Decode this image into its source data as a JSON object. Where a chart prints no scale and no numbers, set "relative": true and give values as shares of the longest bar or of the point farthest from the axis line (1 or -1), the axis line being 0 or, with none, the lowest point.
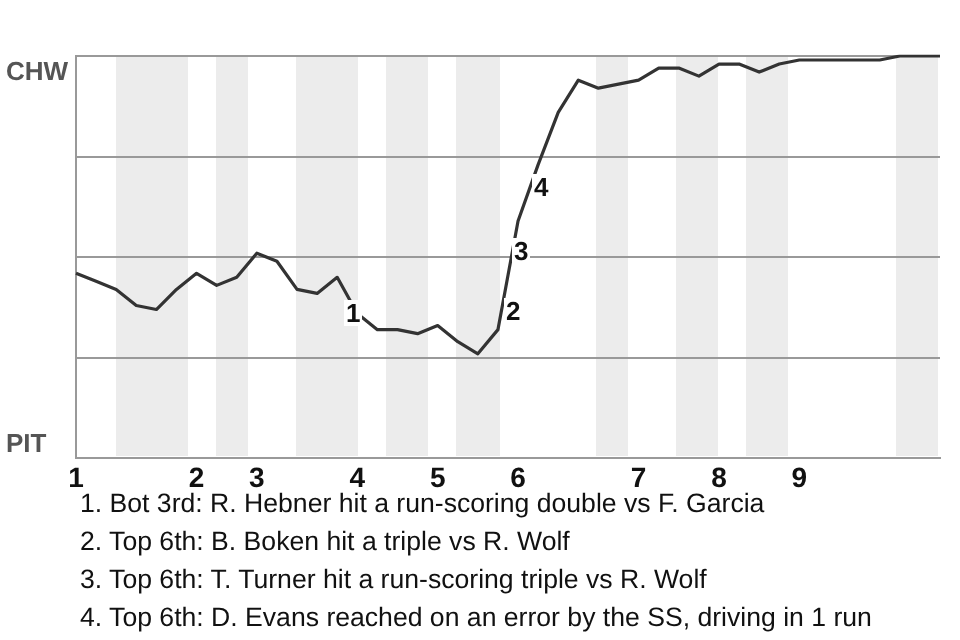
{
  "chart_data": {
    "type": "line",
    "relative": true,
    "categories": [
      "1",
      null,
      null,
      null,
      null,
      null,
      "2",
      null,
      null,
      "3",
      null,
      null,
      null,
      null,
      "4",
      null,
      null,
      null,
      "5",
      null,
      null,
      null,
      "6",
      null,
      null,
      null,
      null,
      null,
      "7",
      null,
      null,
      null,
      "8",
      null,
      null,
      null,
      "9",
      null,
      null,
      null,
      null,
      null,
      null,
      null
    ],
    "series": [
      {
        "color": "#333333",
        "values": [
          0.46,
          0.44,
          0.42,
          0.38,
          0.37,
          0.42,
          0.46,
          0.43,
          0.45,
          0.51,
          0.49,
          0.42,
          0.41,
          0.45,
          0.36,
          0.32,
          0.32,
          0.31,
          0.33,
          0.29,
          0.26,
          0.32,
          0.59,
          0.73,
          0.86,
          0.94,
          0.92,
          0.93,
          0.94,
          0.97,
          0.97,
          0.95,
          0.98,
          0.98,
          0.96,
          0.98,
          0.99,
          0.99,
          0.99,
          0.99,
          0.99,
          1,
          1,
          1
        ]
      }
    ],
    "grid": "y",
    "legend": false,
    "marker": "none",
    "line_style": "solid",
    "annotations": [
      "CHW",
      "PIT",
      "1",
      "2",
      "3",
      "4",
      "1. Bot 3rd: R. Hebner hit a run-scoring double vs F. Garcia",
      "2. Top 6th: B. Boken hit a triple vs R. Wolf",
      "3. Top 6th: T. Turner hit a run-scoring triple vs R. Wolf",
      "4. Top 6th: D. Evans reached on an error by the SS, driving in 1 run"
    ]
  }
}
